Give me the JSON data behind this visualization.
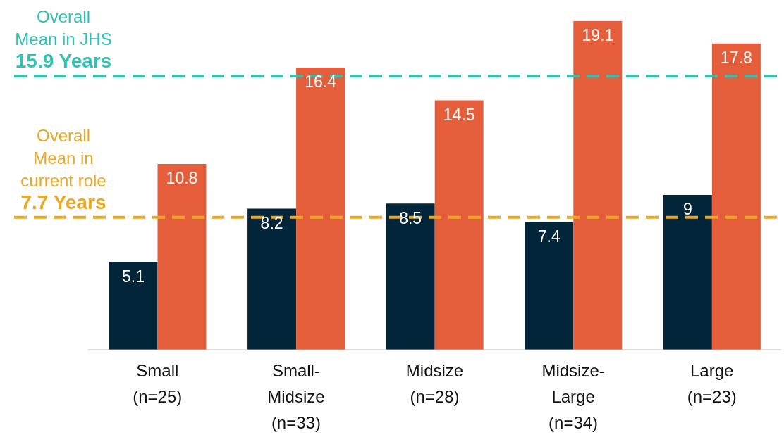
{
  "chart_data": {
    "type": "bar",
    "categories": [
      "Small\n(n=25)",
      "Small-\nMidsize\n(n=33)",
      "Midsize\n(n=28)",
      "Midsize-\nLarge\n(n=34)",
      "Large\n(n=23)"
    ],
    "series": [
      {
        "color": "#03253a",
        "values": [
          5.1,
          8.2,
          8.5,
          7.4,
          9
        ]
      },
      {
        "color": "#e55e3c",
        "values": [
          10.8,
          16.4,
          14.5,
          19.1,
          17.8
        ]
      }
    ],
    "data_labels": true,
    "tick_labels": "x",
    "ref_lines": [
      {
        "axis": "y",
        "value": 15.9,
        "label": "Overall\nMean in JHS\n15.9 Years",
        "color": "#2ec4b4",
        "line_style": "dashed"
      },
      {
        "axis": "y",
        "value": 7.7,
        "label": "Overall\nMean in\ncurrent role\n7.7 Years",
        "color": "#e9a825",
        "line_style": "dashed"
      }
    ]
  }
}
